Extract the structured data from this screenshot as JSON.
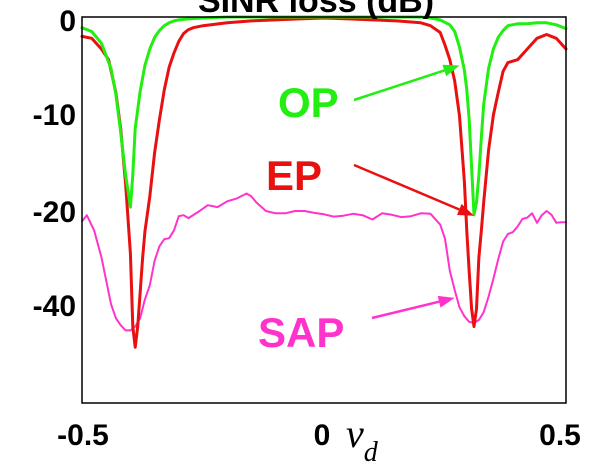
{
  "chart_data": {
    "type": "line",
    "title": "SINR loss (dB)",
    "xlabel": "ν",
    "xlabel_sub": "d",
    "xlim": [
      -0.5,
      0.5
    ],
    "ylim": [
      -50,
      0
    ],
    "grid": false,
    "x_ticks": [
      {
        "value": -0.5,
        "label": "-0.5"
      },
      {
        "value": 0,
        "label": "0"
      },
      {
        "value": 0.5,
        "label": "0.5"
      }
    ],
    "y_ticks": [
      {
        "value": 0,
        "label": "0"
      },
      {
        "value": -10,
        "label": "-10"
      },
      {
        "value": -20,
        "label": "-20"
      },
      {
        "value": -40,
        "label": "-40"
      }
    ],
    "series": [
      {
        "name": "SAP",
        "color": "#ff33cc",
        "width": 2,
        "x": [
          -0.5,
          -0.49,
          -0.475,
          -0.46,
          -0.45,
          -0.44,
          -0.43,
          -0.42,
          -0.41,
          -0.4,
          -0.39,
          -0.38,
          -0.37,
          -0.36,
          -0.35,
          -0.34,
          -0.33,
          -0.32,
          -0.31,
          -0.3,
          -0.29,
          -0.28,
          -0.26,
          -0.24,
          -0.22,
          -0.2,
          -0.18,
          -0.16,
          -0.15,
          -0.14,
          -0.12,
          -0.1,
          -0.08,
          -0.06,
          -0.04,
          -0.02,
          0,
          0.02,
          0.04,
          0.06,
          0.08,
          0.1,
          0.12,
          0.14,
          0.16,
          0.18,
          0.2,
          0.22,
          0.24,
          0.25,
          0.26,
          0.27,
          0.28,
          0.29,
          0.3,
          0.31,
          0.32,
          0.33,
          0.34,
          0.35,
          0.36,
          0.37,
          0.38,
          0.39,
          0.4,
          0.41,
          0.42,
          0.43,
          0.44,
          0.45,
          0.46,
          0.47,
          0.48,
          0.49,
          0.5
        ],
        "y": [
          -22.2,
          -20.9,
          -24.1,
          -29.8,
          -34.8,
          -39.8,
          -42.8,
          -44.3,
          -45.4,
          -45.4,
          -44.6,
          -42.8,
          -38.8,
          -35.8,
          -30.6,
          -27.5,
          -26.0,
          -25.8,
          -24.1,
          -21.1,
          -20.9,
          -21.5,
          -20.2,
          -19.4,
          -19.6,
          -19.0,
          -18.7,
          -18.2,
          -18.5,
          -19.1,
          -20.0,
          -20.5,
          -20.5,
          -20.0,
          -20.0,
          -20.4,
          -20.7,
          -21.2,
          -21.0,
          -20.6,
          -20.9,
          -21.8,
          -20.5,
          -20.8,
          -21.3,
          -21.1,
          -20.5,
          -20.6,
          -22.9,
          -25.9,
          -32.7,
          -36.8,
          -40.5,
          -42.4,
          -43.6,
          -43.8,
          -43.2,
          -41.5,
          -38.2,
          -34.4,
          -30.3,
          -26.5,
          -24.9,
          -24.5,
          -23.3,
          -21.7,
          -21.4,
          -20.5,
          -22.5,
          -20.9,
          -20.0,
          -20.8,
          -22.5,
          -22.4,
          -22.4
        ]
      },
      {
        "name": "EP",
        "color": "#e81010",
        "width": 3,
        "x": [
          -0.5,
          -0.48,
          -0.46,
          -0.445,
          -0.43,
          -0.42,
          -0.41,
          -0.4,
          -0.395,
          -0.39,
          -0.385,
          -0.38,
          -0.375,
          -0.37,
          -0.36,
          -0.35,
          -0.34,
          -0.33,
          -0.32,
          -0.31,
          -0.3,
          -0.29,
          -0.28,
          -0.27,
          -0.25,
          -0.2,
          -0.15,
          -0.1,
          -0.05,
          0,
          0.05,
          0.1,
          0.15,
          0.2,
          0.22,
          0.24,
          0.25,
          0.26,
          0.27,
          0.28,
          0.29,
          0.295,
          0.3,
          0.305,
          0.31,
          0.315,
          0.32,
          0.325,
          0.33,
          0.34,
          0.35,
          0.36,
          0.37,
          0.38,
          0.4,
          0.42,
          0.44,
          0.46,
          0.48,
          0.5
        ],
        "y": [
          -2.0,
          -2.2,
          -3.3,
          -4.4,
          -7.8,
          -11.5,
          -17.2,
          -29.0,
          -44.6,
          -49.0,
          -44.6,
          -37.5,
          -30.3,
          -24.4,
          -18.5,
          -14.0,
          -10.6,
          -7.5,
          -5.2,
          -3.7,
          -2.5,
          -1.7,
          -1.3,
          -1.1,
          -0.9,
          -0.6,
          -0.4,
          -0.3,
          -0.2,
          -0.1,
          -0.2,
          -0.3,
          -0.4,
          -0.6,
          -0.9,
          -1.6,
          -2.9,
          -4.4,
          -6.6,
          -10.2,
          -17.0,
          -24.3,
          -32.9,
          -40.8,
          -44.6,
          -40.8,
          -29.8,
          -24.3,
          -19.1,
          -13.7,
          -10.1,
          -7.8,
          -5.6,
          -4.7,
          -4.4,
          -3.3,
          -2.2,
          -1.8,
          -2.2,
          -3.3
        ]
      },
      {
        "name": "OP",
        "color": "#22ee11",
        "width": 3,
        "x": [
          -0.5,
          -0.48,
          -0.46,
          -0.45,
          -0.44,
          -0.43,
          -0.42,
          -0.41,
          -0.405,
          -0.4,
          -0.395,
          -0.39,
          -0.38,
          -0.37,
          -0.36,
          -0.35,
          -0.34,
          -0.33,
          -0.32,
          -0.31,
          -0.3,
          -0.28,
          -0.25,
          -0.2,
          -0.15,
          -0.1,
          -0.05,
          0,
          0.05,
          0.1,
          0.15,
          0.2,
          0.22,
          0.24,
          0.26,
          0.27,
          0.28,
          0.29,
          0.295,
          0.3,
          0.305,
          0.31,
          0.315,
          0.32,
          0.325,
          0.33,
          0.34,
          0.35,
          0.36,
          0.37,
          0.38,
          0.4,
          0.42,
          0.44,
          0.46,
          0.48,
          0.5
        ],
        "y": [
          -1.1,
          -1.5,
          -2.7,
          -4.0,
          -5.3,
          -8.0,
          -11.9,
          -16.3,
          -17.9,
          -19.6,
          -16.3,
          -11.5,
          -7.7,
          -5.0,
          -3.3,
          -2.1,
          -1.4,
          -0.9,
          -0.6,
          -0.4,
          -0.3,
          -0.2,
          -0.1,
          0.0,
          0.0,
          0.0,
          0.0,
          0.0,
          0.0,
          0.0,
          0.0,
          0.0,
          -0.1,
          -0.3,
          -0.8,
          -1.5,
          -3.1,
          -5.5,
          -7.5,
          -10.6,
          -15.5,
          -20.8,
          -19.1,
          -16.3,
          -12.5,
          -9.0,
          -5.3,
          -3.3,
          -2.1,
          -1.4,
          -0.9,
          -0.7,
          -0.7,
          -0.6,
          -0.6,
          -0.8,
          -1.2
        ]
      }
    ],
    "annotations": [
      {
        "text": "OP",
        "color": "#22ee11",
        "arrow_to": [
          0.28,
          -5.0
        ]
      },
      {
        "text": "EP",
        "color": "#e81010",
        "arrow_to": [
          0.31,
          -21.0
        ]
      },
      {
        "text": "SAP",
        "color": "#ff33cc",
        "arrow_to": [
          0.27,
          -38.5
        ]
      }
    ]
  }
}
